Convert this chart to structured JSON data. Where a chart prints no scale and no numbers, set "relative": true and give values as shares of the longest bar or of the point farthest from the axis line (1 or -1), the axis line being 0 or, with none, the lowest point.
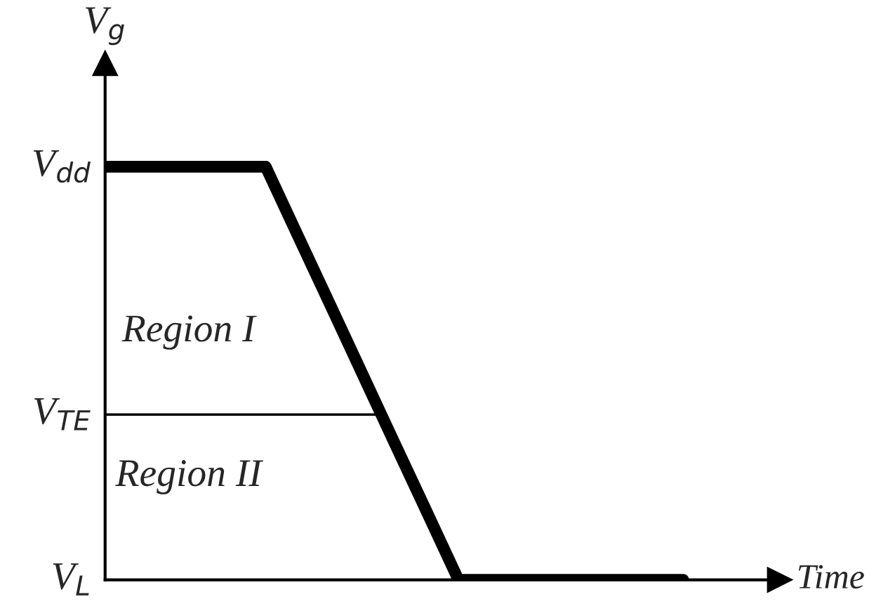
{
  "chart_data": {
    "type": "line",
    "ylabel": "V$_{g}$",
    "xlabel": "Time",
    "categories": [
      null,
      null,
      null,
      null,
      null,
      null,
      null,
      null,
      null,
      null,
      null,
      null,
      null,
      null,
      null,
      null,
      null,
      null,
      null
    ],
    "series": [
      {
        "color": "#000000",
        "values": [
          1,
          1,
          1,
          1,
          1,
          1,
          0.833,
          0.667,
          0.5,
          0.333,
          0.167,
          0,
          0,
          0,
          0,
          0,
          0,
          0,
          0
        ]
      }
    ],
    "relative": true,
    "ref_lines": [
      {
        "axis": "y",
        "value": 0.4,
        "label": "V$_{TE}$",
        "color": "#000000"
      }
    ],
    "annotations": [
      "V$_{dd}$",
      "V$_{L}$",
      "Region I",
      "Region II"
    ],
    "marker": "none",
    "line_style": "solid"
  }
}
